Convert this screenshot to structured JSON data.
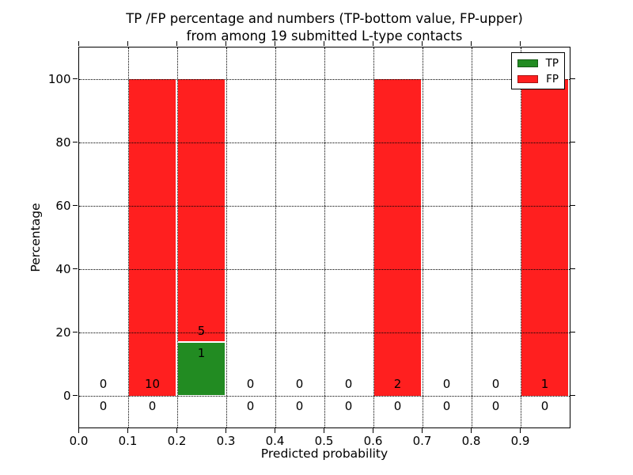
{
  "title": {
    "line1": "TP /FP percentage and numbers (TP-bottom value, FP-upper)",
    "line2": "from among 19 submitted L-type contacts"
  },
  "colors": {
    "tp": "#228b22",
    "fp": "#ff1f1f",
    "grid": "#000000",
    "axis": "#000000",
    "background": "#ffffff"
  },
  "legend": {
    "position": "upper right",
    "entries": [
      {
        "label": "TP",
        "color_key": "tp"
      },
      {
        "label": "FP",
        "color_key": "fp"
      }
    ]
  },
  "chart_data": {
    "type": "bar",
    "stacked": true,
    "title": "TP /FP percentage and numbers (TP-bottom value, FP-upper) from among 19 submitted L-type contacts",
    "xlabel": "Predicted probability",
    "ylabel": "Percentage",
    "xlim": [
      0.0,
      1.0
    ],
    "ylim": [
      -10,
      110
    ],
    "xtick_labels": [
      "0.0",
      "0.1",
      "0.2",
      "0.3",
      "0.4",
      "0.5",
      "0.6",
      "0.7",
      "0.8",
      "0.9"
    ],
    "ytick_values": [
      0,
      20,
      40,
      60,
      80,
      100
    ],
    "grid": "dotted black, drawn over bars",
    "series": [
      {
        "name": "TP",
        "color": "#228b22"
      },
      {
        "name": "FP",
        "color": "#ff1f1f"
      }
    ],
    "bins": [
      {
        "range": [
          0.0,
          0.1
        ],
        "tp_count": 0,
        "fp_count": 0,
        "tp_pct": 0,
        "fp_pct": 0
      },
      {
        "range": [
          0.1,
          0.2
        ],
        "tp_count": 0,
        "fp_count": 10,
        "tp_pct": 0,
        "fp_pct": 100
      },
      {
        "range": [
          0.2,
          0.3
        ],
        "tp_count": 1,
        "fp_count": 5,
        "tp_pct": 16.67,
        "fp_pct": 83.33
      },
      {
        "range": [
          0.3,
          0.4
        ],
        "tp_count": 0,
        "fp_count": 0,
        "tp_pct": 0,
        "fp_pct": 0
      },
      {
        "range": [
          0.4,
          0.5
        ],
        "tp_count": 0,
        "fp_count": 0,
        "tp_pct": 0,
        "fp_pct": 0
      },
      {
        "range": [
          0.5,
          0.6
        ],
        "tp_count": 0,
        "fp_count": 0,
        "tp_pct": 0,
        "fp_pct": 0
      },
      {
        "range": [
          0.6,
          0.7
        ],
        "tp_count": 0,
        "fp_count": 2,
        "tp_pct": 0,
        "fp_pct": 100
      },
      {
        "range": [
          0.7,
          0.8
        ],
        "tp_count": 0,
        "fp_count": 0,
        "tp_pct": 0,
        "fp_pct": 0
      },
      {
        "range": [
          0.8,
          0.9
        ],
        "tp_count": 0,
        "fp_count": 0,
        "tp_pct": 0,
        "fp_pct": 0
      },
      {
        "range": [
          0.9,
          1.0
        ],
        "tp_count": 0,
        "fp_count": 1,
        "tp_pct": 0,
        "fp_pct": 100
      }
    ]
  }
}
